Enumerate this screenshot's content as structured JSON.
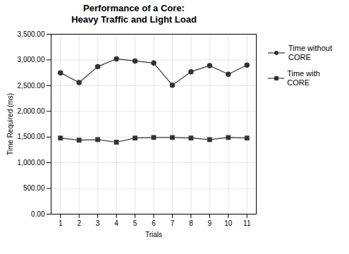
{
  "chart_data": {
    "type": "line",
    "title": "Performance of a Core:\nHeavy Traffic and Light Load",
    "xlabel": "Trials",
    "ylabel": "Time Required (ms)",
    "x": [
      1,
      2,
      3,
      4,
      5,
      6,
      7,
      8,
      9,
      10,
      11
    ],
    "series": [
      {
        "name": "Time without\nCORE",
        "color": "#333333",
        "marker": "circle",
        "values": [
          2750,
          2560,
          2870,
          3020,
          2980,
          2940,
          2510,
          2770,
          2890,
          2720,
          2900
        ]
      },
      {
        "name": "Time with CORE",
        "color": "#333333",
        "marker": "square",
        "values": [
          1480,
          1440,
          1450,
          1400,
          1480,
          1490,
          1490,
          1480,
          1450,
          1490,
          1480
        ]
      }
    ],
    "xlim": [
      0.5,
      11.5
    ],
    "xticks": [
      1,
      2,
      3,
      4,
      5,
      6,
      7,
      8,
      9,
      10,
      11
    ],
    "ylim": [
      0,
      3500
    ],
    "yticks": [
      {
        "value": 0,
        "label": "0.00"
      },
      {
        "value": 500,
        "label": "500.00"
      },
      {
        "value": 1000,
        "label": "1,000.00"
      },
      {
        "value": 1500,
        "label": "1,500.00"
      },
      {
        "value": 2000,
        "label": "2,000.00"
      },
      {
        "value": 2500,
        "label": "2,500.00"
      },
      {
        "value": 3000,
        "label": "3,000.00"
      },
      {
        "value": 3500,
        "label": "3,500.00"
      }
    ],
    "grid": true,
    "legend": "right"
  }
}
